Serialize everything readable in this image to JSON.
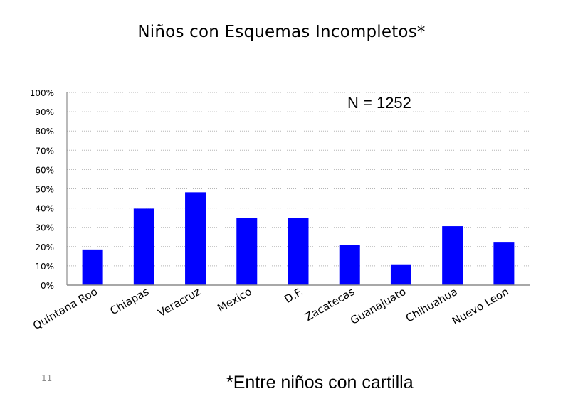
{
  "slide": {
    "title": "Niños con Esquemas Incompletos*",
    "footnote": "*Entre niños con cartilla",
    "number": "11"
  },
  "chart_data": {
    "type": "bar",
    "title": "Niños con Esquemas Incompletos*",
    "annotation": "N = 1252",
    "categories": [
      "Quintana Roo",
      "Chiapas",
      "Veracruz",
      "Mexico",
      "D.F.",
      "Zacatecas",
      "Guanajuato",
      "Chihuahua",
      "Nuevo Leon"
    ],
    "series": [
      {
        "values": [
          18.5,
          39.7,
          48.2,
          34.7,
          34.7,
          20.9,
          10.8,
          30.6,
          22.1
        ],
        "color": "#0000ff"
      }
    ],
    "ylim": [
      0,
      100
    ],
    "yticks": [
      "0%",
      "10%",
      "20%",
      "30%",
      "40%",
      "50%",
      "60%",
      "70%",
      "80%",
      "90%",
      "100%"
    ],
    "grid": true,
    "grid_style": "dotted",
    "legend": "none",
    "xlabel": "",
    "ylabel": ""
  }
}
